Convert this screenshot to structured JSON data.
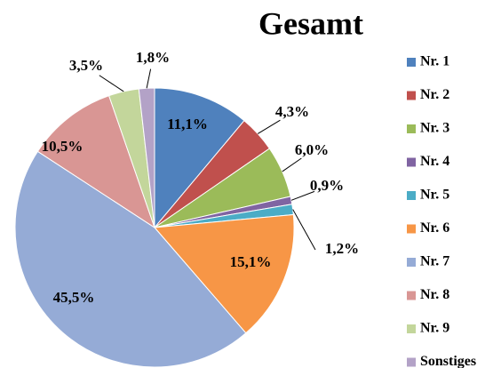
{
  "chart_data": {
    "type": "pie",
    "title": "Gesamt",
    "categories": [
      "Nr. 1",
      "Nr. 2",
      "Nr. 3",
      "Nr. 4",
      "Nr. 5",
      "Nr. 6",
      "Nr. 7",
      "Nr. 8",
      "Nr. 9",
      "Sonstiges"
    ],
    "values": [
      11.1,
      4.3,
      6.0,
      0.9,
      1.2,
      15.1,
      45.5,
      10.5,
      3.5,
      1.8
    ],
    "value_labels": [
      "11,1%",
      "4,3%",
      "6,0%",
      "0,9%",
      "1,2%",
      "15,1%",
      "45,5%",
      "10,5%",
      "3,5%",
      "1,8%"
    ],
    "colors": [
      "#4f81bd",
      "#c0504d",
      "#9bbb59",
      "#8064a2",
      "#4bacc6",
      "#f79646",
      "#95abd6",
      "#d99694",
      "#c3d69b",
      "#b3a2c7"
    ],
    "legend": "right"
  }
}
